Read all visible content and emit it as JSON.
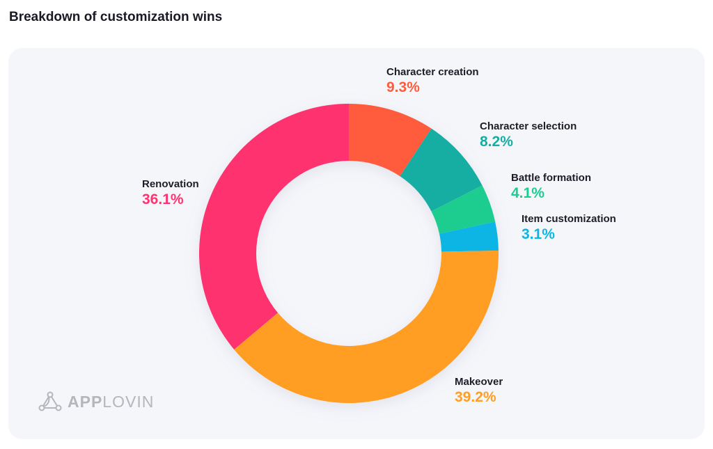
{
  "title": "Breakdown of customization wins",
  "logo_text": {
    "bold": "APP",
    "light": "LOVIN"
  },
  "chart_data": {
    "type": "pie",
    "donut": true,
    "title": "Breakdown of customization wins",
    "start_angle_deg": 0,
    "direction": "clockwise",
    "slices": [
      {
        "label": "Character creation",
        "value": 9.3,
        "display": "9.3%",
        "color": "#ff5c3e"
      },
      {
        "label": "Character selection",
        "value": 8.2,
        "display": "8.2%",
        "color": "#16aea3"
      },
      {
        "label": "Battle formation",
        "value": 4.1,
        "display": "4.1%",
        "color": "#1ccd8f"
      },
      {
        "label": "Item customization",
        "value": 3.1,
        "display": "3.1%",
        "color": "#0db5e4"
      },
      {
        "label": "Makeover",
        "value": 39.2,
        "display": "39.2%",
        "color": "#ff9e22"
      },
      {
        "label": "Renovation",
        "value": 36.1,
        "display": "36.1%",
        "color": "#ff3370"
      }
    ]
  }
}
